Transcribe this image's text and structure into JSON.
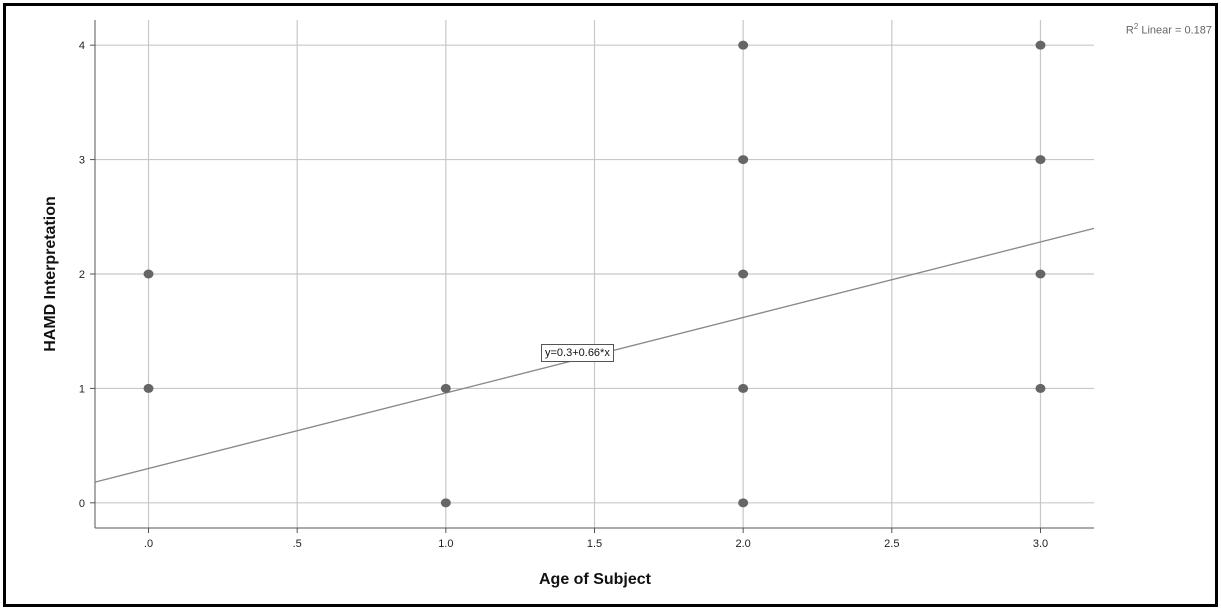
{
  "chart_data": {
    "type": "scatter",
    "xlabel": "Age of Subject",
    "ylabel": "HAMD Interpretation",
    "xlim": [
      -0.18,
      3.18
    ],
    "ylim": [
      -0.22,
      4.22
    ],
    "x_ticks": [
      0,
      0.5,
      1,
      1.5,
      2,
      2.5,
      3
    ],
    "x_tick_labels": [
      ".0",
      ".5",
      "1.0",
      "1.5",
      "2.0",
      "2.5",
      "3.0"
    ],
    "y_ticks": [
      0,
      1,
      2,
      3,
      4
    ],
    "y_tick_labels": [
      "0",
      "1",
      "2",
      "3",
      "4"
    ],
    "grid": true,
    "points": [
      {
        "x": 0,
        "y": 2
      },
      {
        "x": 0,
        "y": 1
      },
      {
        "x": 1,
        "y": 1
      },
      {
        "x": 1,
        "y": 0
      },
      {
        "x": 2,
        "y": 4
      },
      {
        "x": 2,
        "y": 3
      },
      {
        "x": 2,
        "y": 2
      },
      {
        "x": 2,
        "y": 1
      },
      {
        "x": 2,
        "y": 0
      },
      {
        "x": 3,
        "y": 4
      },
      {
        "x": 3,
        "y": 3
      },
      {
        "x": 3,
        "y": 2
      },
      {
        "x": 3,
        "y": 1
      }
    ],
    "fit_line": {
      "intercept": 0.3,
      "slope": 0.66
    },
    "equation_label": "y=0.3+0.66*x",
    "r2_label": {
      "prefix": "R",
      "superscript": "2",
      "text": " Linear = 0.187"
    },
    "colors": {
      "points": "#666666",
      "line": "#888888",
      "grid": "#c8c8c8",
      "axis": "#555555"
    }
  }
}
